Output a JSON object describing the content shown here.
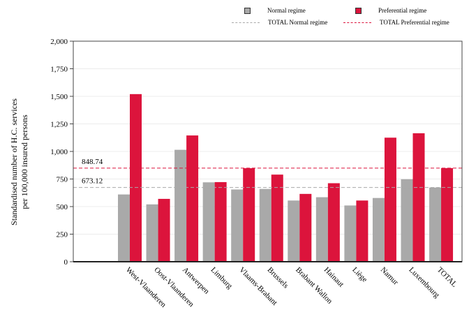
{
  "chart_data": {
    "type": "bar",
    "ylabel_line1": "Standardised number of H.C. services",
    "ylabel_line2": "per 100,000 insured persons",
    "ylim": [
      0,
      2000
    ],
    "yticks": [
      "0",
      "250",
      "500",
      "750",
      "1,000",
      "1,250",
      "1,500",
      "1,750",
      "2,000"
    ],
    "ytick_values": [
      0,
      250,
      500,
      750,
      1000,
      1250,
      1500,
      1750,
      2000
    ],
    "grid": true,
    "legend_position": "top-right",
    "categories": [
      "West-Vlaanderen",
      "Oost-Vlaanderen",
      "Antwerpen",
      "Limburg",
      "Vlaams-Brabant",
      "Brussels",
      "Brabant Wallon",
      "Hainaut",
      "Liège",
      "Namur",
      "Luxembourg",
      "TOTAL"
    ],
    "series": [
      {
        "name": "Normal regime",
        "color": "#a9a9a9",
        "values": [
          610,
          520,
          1015,
          720,
          655,
          660,
          555,
          585,
          510,
          578,
          748,
          673
        ]
      },
      {
        "name": "Preferential regime",
        "color": "#dc143c",
        "values": [
          1520,
          570,
          1145,
          722,
          848,
          790,
          615,
          712,
          555,
          1125,
          1165,
          849
        ]
      }
    ],
    "reference_lines": [
      {
        "name": "TOTAL Normal regime",
        "value": 673.12,
        "label": "673.12",
        "color": "#a9a9a9"
      },
      {
        "name": "TOTAL Preferential regime",
        "value": 848.74,
        "label": "848.74",
        "color": "#dc143c"
      }
    ]
  }
}
